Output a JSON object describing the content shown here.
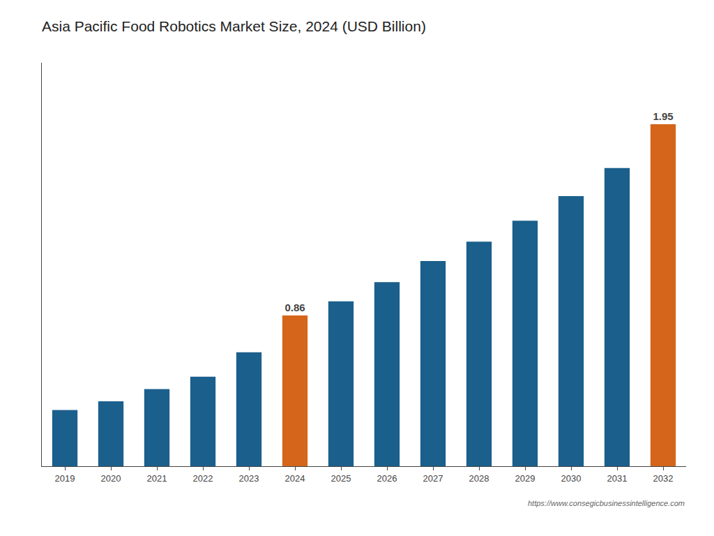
{
  "chart_data": {
    "type": "bar",
    "title": "Asia Pacific Food Robotics Market Size, 2024 (USD Billion)",
    "categories": [
      "2019",
      "2020",
      "2021",
      "2022",
      "2023",
      "2024",
      "2025",
      "2026",
      "2027",
      "2028",
      "2029",
      "2030",
      "2031",
      "2032"
    ],
    "values": [
      0.32,
      0.37,
      0.44,
      0.51,
      0.65,
      0.86,
      0.94,
      1.05,
      1.17,
      1.28,
      1.4,
      1.54,
      1.7,
      1.95
    ],
    "value_labels": [
      null,
      null,
      null,
      null,
      null,
      "0.86",
      null,
      null,
      null,
      null,
      null,
      null,
      null,
      "1.95"
    ],
    "colors": [
      "#1b5f8c",
      "#1b5f8c",
      "#1b5f8c",
      "#1b5f8c",
      "#1b5f8c",
      "#d4651a",
      "#1b5f8c",
      "#1b5f8c",
      "#1b5f8c",
      "#1b5f8c",
      "#1b5f8c",
      "#1b5f8c",
      "#1b5f8c",
      "#d4651a"
    ],
    "ylim": [
      0,
      2.3
    ],
    "yticks": [],
    "tick_labels": "x",
    "grid": false,
    "annotations": [
      "https://www.consegicbusinessintelligence.com"
    ]
  }
}
